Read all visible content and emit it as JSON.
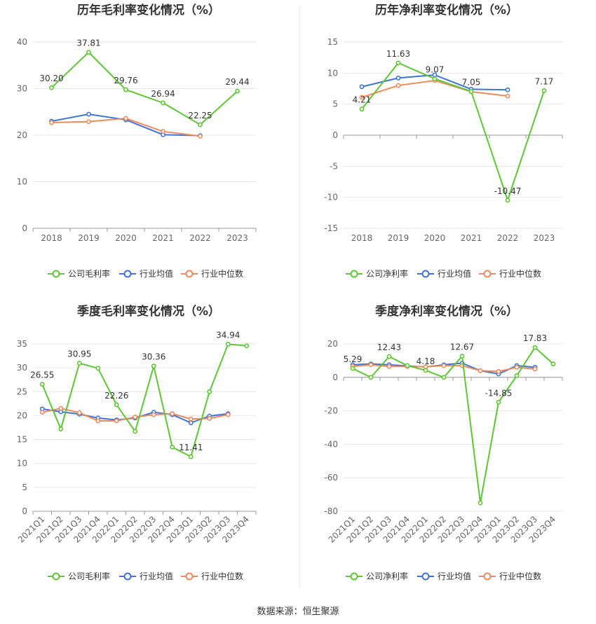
{
  "footer": {
    "source": "数据来源：恒生聚源"
  },
  "colors": {
    "company": "#5ec634",
    "avg": "#3f73d9",
    "median": "#ee8a5a",
    "grid": "#e6e6e6",
    "axis": "#999999"
  },
  "chart_data": [
    {
      "type": "line",
      "title": "历年毛利率变化情况（%）",
      "categories": [
        "2018",
        "2019",
        "2020",
        "2021",
        "2022",
        "2023"
      ],
      "ylim": [
        0,
        40
      ],
      "yticks": [
        0,
        10,
        20,
        30,
        40
      ],
      "grid": true,
      "legend_position": "bottom",
      "series": [
        {
          "name": "公司毛利率",
          "values": [
            30.2,
            37.81,
            29.76,
            26.94,
            22.25,
            29.44
          ],
          "labels": [
            "30.20",
            "37.81",
            "29.76",
            "26.94",
            "22.25",
            "29.44"
          ]
        },
        {
          "name": "行业均值",
          "values": [
            23.0,
            24.5,
            23.3,
            20.1,
            19.9,
            null
          ]
        },
        {
          "name": "行业中位数",
          "values": [
            22.7,
            22.9,
            23.6,
            20.8,
            19.8,
            null
          ]
        }
      ]
    },
    {
      "type": "line",
      "title": "历年净利率变化情况（%）",
      "categories": [
        "2018",
        "2019",
        "2020",
        "2021",
        "2022",
        "2023"
      ],
      "ylim": [
        -15,
        15
      ],
      "yticks": [
        -15,
        -10,
        -5,
        0,
        5,
        10,
        15
      ],
      "grid": true,
      "legend_position": "bottom",
      "series": [
        {
          "name": "公司净利率",
          "values": [
            4.21,
            11.63,
            9.07,
            7.05,
            -10.47,
            7.17
          ],
          "labels": [
            "4.21",
            "11.63",
            "9.07",
            "7.05",
            "-10.47",
            "7.17"
          ]
        },
        {
          "name": "行业均值",
          "values": [
            7.8,
            9.2,
            9.7,
            7.4,
            7.3,
            null
          ]
        },
        {
          "name": "行业中位数",
          "values": [
            6.1,
            8.0,
            8.8,
            7.0,
            6.3,
            null
          ]
        }
      ]
    },
    {
      "type": "line",
      "title": "季度毛利率变化情况（%）",
      "categories": [
        "2021Q1",
        "2021Q2",
        "2021Q3",
        "2021Q4",
        "2022Q1",
        "2022Q2",
        "2022Q3",
        "2022Q4",
        "2023Q1",
        "2023Q2",
        "2023Q3",
        "2023Q4"
      ],
      "ylim": [
        0,
        35
      ],
      "yticks": [
        0,
        5,
        10,
        15,
        20,
        25,
        30,
        35
      ],
      "grid": true,
      "legend_position": "bottom",
      "series": [
        {
          "name": "公司毛利率",
          "values": [
            26.55,
            17.2,
            30.95,
            29.9,
            22.26,
            16.7,
            30.36,
            13.4,
            11.41,
            25.0,
            34.94,
            34.6
          ],
          "labels": [
            "26.55",
            "",
            "30.95",
            "",
            "22.26",
            "",
            "30.36",
            "",
            "11.41",
            "",
            "34.94",
            ""
          ]
        },
        {
          "name": "行业均值",
          "values": [
            21.4,
            20.8,
            20.3,
            19.5,
            19.1,
            19.5,
            20.7,
            20.2,
            18.5,
            19.9,
            20.4,
            null
          ]
        },
        {
          "name": "行业中位数",
          "values": [
            20.7,
            21.5,
            20.6,
            18.9,
            18.9,
            19.7,
            20.2,
            20.4,
            19.3,
            19.4,
            20.2,
            null
          ]
        }
      ]
    },
    {
      "type": "line",
      "title": "季度净利率变化情况（%）",
      "categories": [
        "2021Q1",
        "2021Q2",
        "2021Q3",
        "2021Q4",
        "2022Q1",
        "2022Q2",
        "2022Q3",
        "2022Q4",
        "2023Q1",
        "2023Q2",
        "2023Q3",
        "2023Q4"
      ],
      "ylim": [
        -80,
        20
      ],
      "yticks": [
        -80,
        -60,
        -40,
        -20,
        0,
        20
      ],
      "grid": true,
      "legend_position": "bottom",
      "series": [
        {
          "name": "公司净利率",
          "values": [
            5.29,
            0.0,
            12.43,
            7.0,
            4.18,
            0.0,
            12.67,
            -75.0,
            -14.85,
            1.0,
            17.83,
            8.0
          ],
          "labels": [
            "5.29",
            "",
            "12.43",
            "",
            "4.18",
            "",
            "12.67",
            "",
            "-14.85",
            "",
            "17.83",
            ""
          ]
        },
        {
          "name": "行业均值",
          "values": [
            7.5,
            8.0,
            7.5,
            6.8,
            6.2,
            7.5,
            8.5,
            4.0,
            2.0,
            7.0,
            6.0,
            null
          ]
        },
        {
          "name": "行业中位数",
          "values": [
            6.5,
            7.5,
            6.5,
            6.5,
            6.3,
            7.0,
            7.0,
            4.0,
            3.5,
            6.0,
            5.0,
            null
          ]
        }
      ]
    }
  ]
}
